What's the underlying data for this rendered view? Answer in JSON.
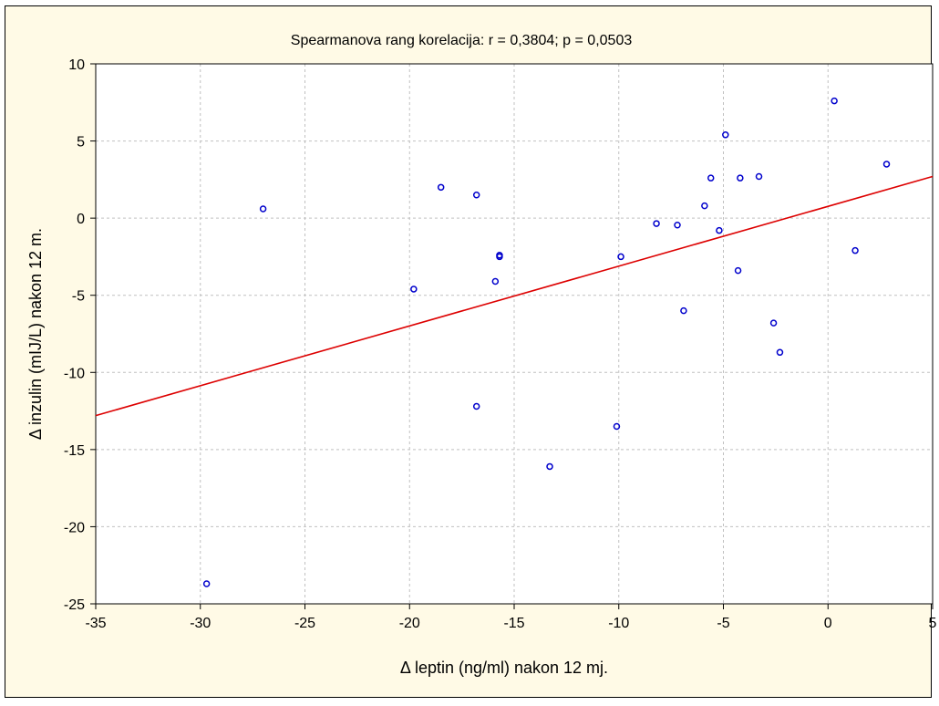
{
  "chart_data": {
    "type": "scatter",
    "title": "Spearmanova rang korelacija: r = 0,3804; p = 0,0503",
    "xlabel": "Δ leptin (ng/ml) nakon 12 mj.",
    "ylabel": "Δ inzulin  (mIJ/L) nakon 12 m.",
    "xlim": [
      -35,
      5
    ],
    "ylim": [
      -25,
      10
    ],
    "x_ticks": [
      -35,
      -30,
      -25,
      -20,
      -15,
      -10,
      -5,
      0,
      5
    ],
    "y_ticks": [
      10,
      5,
      0,
      -5,
      -10,
      -15,
      -20,
      -25
    ],
    "grid": true,
    "colors": {
      "points": "#0000cc",
      "fit_line": "#dd0000",
      "background": "#fffae6",
      "plot_area": "#ffffff"
    },
    "points": [
      {
        "x": -29.7,
        "y": -23.7
      },
      {
        "x": -27.0,
        "y": 0.6
      },
      {
        "x": -19.8,
        "y": -4.6
      },
      {
        "x": -18.5,
        "y": 2.0
      },
      {
        "x": -16.8,
        "y": 1.5
      },
      {
        "x": -16.8,
        "y": -12.2
      },
      {
        "x": -15.9,
        "y": -4.1
      },
      {
        "x": -15.7,
        "y": -2.4
      },
      {
        "x": -15.7,
        "y": -2.5
      },
      {
        "x": -13.3,
        "y": -16.1
      },
      {
        "x": -10.1,
        "y": -13.5
      },
      {
        "x": -9.9,
        "y": -2.5
      },
      {
        "x": -8.2,
        "y": -0.35
      },
      {
        "x": -7.2,
        "y": -0.45
      },
      {
        "x": -6.9,
        "y": -6.0
      },
      {
        "x": -5.9,
        "y": 0.8
      },
      {
        "x": -5.6,
        "y": 2.6
      },
      {
        "x": -5.2,
        "y": -0.8
      },
      {
        "x": -4.9,
        "y": 5.4
      },
      {
        "x": -4.3,
        "y": -3.4
      },
      {
        "x": -4.2,
        "y": 2.6
      },
      {
        "x": -3.3,
        "y": 2.7
      },
      {
        "x": -2.6,
        "y": -6.8
      },
      {
        "x": -2.3,
        "y": -8.7
      },
      {
        "x": 0.3,
        "y": 7.6
      },
      {
        "x": 1.3,
        "y": -2.1
      },
      {
        "x": 2.8,
        "y": 3.5
      }
    ],
    "fit_line": [
      {
        "x": -35,
        "y": -12.8
      },
      {
        "x": 5,
        "y": 2.7
      }
    ]
  }
}
